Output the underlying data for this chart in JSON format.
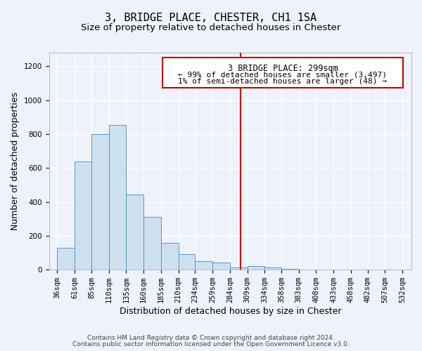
{
  "title": "3, BRIDGE PLACE, CHESTER, CH1 1SA",
  "subtitle": "Size of property relative to detached houses in Chester",
  "xlabel": "Distribution of detached houses by size in Chester",
  "ylabel": "Number of detached properties",
  "bar_left_edges": [
    36,
    61,
    85,
    110,
    135,
    160,
    185,
    210,
    234,
    259,
    284,
    309,
    334,
    358,
    383,
    408,
    433,
    458,
    482,
    507
  ],
  "bar_widths": [
    25,
    24,
    25,
    25,
    25,
    25,
    25,
    24,
    25,
    25,
    25,
    25,
    24,
    25,
    25,
    25,
    25,
    24,
    25,
    25
  ],
  "bar_heights": [
    130,
    640,
    800,
    855,
    445,
    310,
    158,
    93,
    52,
    42,
    15,
    20,
    12,
    5,
    0,
    0,
    0,
    0,
    0,
    0
  ],
  "x_tick_labels": [
    "36sqm",
    "61sqm",
    "85sqm",
    "110sqm",
    "135sqm",
    "160sqm",
    "185sqm",
    "210sqm",
    "234sqm",
    "259sqm",
    "284sqm",
    "309sqm",
    "334sqm",
    "358sqm",
    "383sqm",
    "408sqm",
    "433sqm",
    "458sqm",
    "482sqm",
    "507sqm",
    "532sqm"
  ],
  "x_tick_positions": [
    36,
    61,
    85,
    110,
    135,
    160,
    185,
    210,
    234,
    259,
    284,
    309,
    334,
    358,
    383,
    408,
    433,
    458,
    482,
    507,
    532
  ],
  "ylim": [
    0,
    1280
  ],
  "xlim": [
    24,
    545
  ],
  "bar_face_color": "#cce0f0",
  "bar_edge_color": "#5599cc",
  "vline_x": 299,
  "vline_color": "#cc0000",
  "annotation_title": "3 BRIDGE PLACE: 299sqm",
  "annotation_line1": "← 99% of detached houses are smaller (3,497)",
  "annotation_line2": "1% of semi-detached houses are larger (48) →",
  "annotation_box_color": "#cc0000",
  "annotation_bg_color": "#ffffff",
  "footer_line1": "Contains HM Land Registry data © Crown copyright and database right 2024.",
  "footer_line2": "Contains public sector information licensed under the Open Government Licence v3.0.",
  "background_color": "#eef2fa",
  "title_fontsize": 11,
  "subtitle_fontsize": 9.5,
  "axis_label_fontsize": 9,
  "tick_fontsize": 7.5,
  "footer_fontsize": 6.5,
  "ann_fontsize_title": 8.5,
  "ann_fontsize_body": 8
}
